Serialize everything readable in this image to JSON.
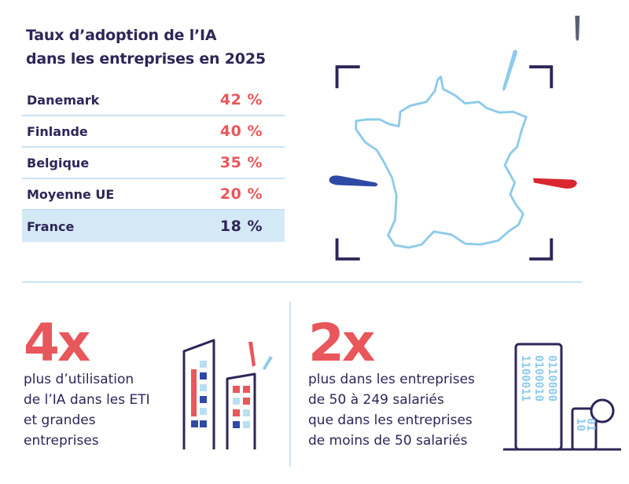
{
  "title": {
    "line1": "Taux d’adoption de l’IA",
    "line2": "dans les entreprises en 2025"
  },
  "table": [
    {
      "country": "Danemark",
      "value": "42 %"
    },
    {
      "country": "Finlande",
      "value": "40 %"
    },
    {
      "country": "Belgique",
      "value": "35 %"
    },
    {
      "country": "Moyenne UE",
      "value": "20 %"
    },
    {
      "country": "France",
      "value": "18 %"
    }
  ],
  "stat_eti": {
    "big": "4x",
    "lines": [
      "plus d’utilisation",
      "de l’IA dans les ETI",
      "et grandes",
      "entreprises"
    ]
  },
  "stat_size": {
    "big": "2x",
    "lines": [
      "plus dans les entreprises",
      "de 50 à 249 salariés",
      "que dans les entreprises",
      "de moins de 50 salariés"
    ]
  },
  "binary": {
    "tall": [
      "1100011",
      "0100010",
      "0110000"
    ],
    "short": [
      "10",
      "01"
    ]
  },
  "colors": {
    "navy": "#2e2557",
    "coral": "#e8575b",
    "light_blue": "#c9e3f3",
    "highlight": "#d3e9f6",
    "map_outline": "#8ecbea",
    "flag_blue": "#2f4aa4",
    "flag_red": "#d9262f"
  }
}
